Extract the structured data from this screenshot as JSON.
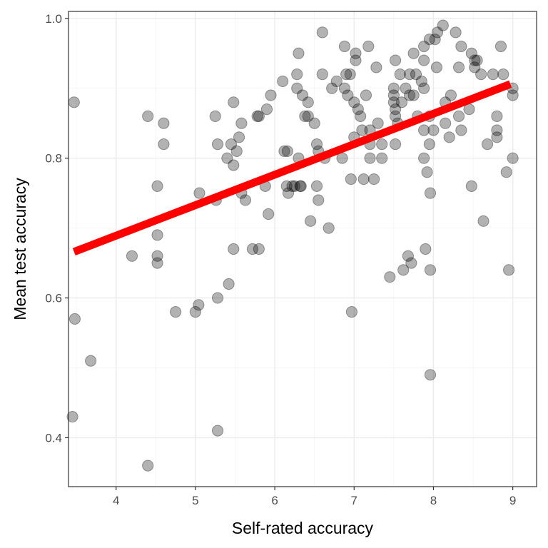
{
  "chart_data": {
    "type": "scatter",
    "xlabel": "Self-rated accuracy",
    "ylabel": "Mean test accuracy",
    "xlim": [
      3.4,
      9.3
    ],
    "ylim": [
      0.33,
      1.01
    ],
    "x_ticks": [
      4,
      5,
      6,
      7,
      8,
      9
    ],
    "x_tick_labels": [
      "4",
      "5",
      "6",
      "7",
      "8",
      "9"
    ],
    "y_ticks": [
      0.4,
      0.6,
      0.8,
      1.0
    ],
    "y_tick_labels": [
      "0.4",
      "0.6",
      "0.8",
      "1.0"
    ],
    "grid": true,
    "point_color": "#000000",
    "point_opacity": 0.3,
    "fit_line": {
      "color": "#ff0000",
      "x": [
        3.47,
        8.97
      ],
      "y": [
        0.666,
        0.906
      ]
    },
    "points": [
      [
        3.47,
        0.88
      ],
      [
        3.48,
        0.57
      ],
      [
        3.45,
        0.43
      ],
      [
        3.68,
        0.51
      ],
      [
        4.2,
        0.66
      ],
      [
        4.4,
        0.86
      ],
      [
        4.4,
        0.36
      ],
      [
        4.52,
        0.76
      ],
      [
        4.52,
        0.69
      ],
      [
        4.52,
        0.66
      ],
      [
        4.52,
        0.65
      ],
      [
        4.6,
        0.85
      ],
      [
        4.6,
        0.82
      ],
      [
        4.75,
        0.58
      ],
      [
        5.0,
        0.58
      ],
      [
        5.04,
        0.59
      ],
      [
        5.05,
        0.75
      ],
      [
        5.25,
        0.86
      ],
      [
        5.26,
        0.74
      ],
      [
        5.28,
        0.82
      ],
      [
        5.28,
        0.6
      ],
      [
        5.28,
        0.41
      ],
      [
        5.4,
        0.8
      ],
      [
        5.42,
        0.62
      ],
      [
        5.45,
        0.82
      ],
      [
        5.48,
        0.88
      ],
      [
        5.48,
        0.79
      ],
      [
        5.48,
        0.67
      ],
      [
        5.52,
        0.81
      ],
      [
        5.55,
        0.83
      ],
      [
        5.58,
        0.85
      ],
      [
        5.58,
        0.75
      ],
      [
        5.63,
        0.74
      ],
      [
        5.72,
        0.67
      ],
      [
        5.78,
        0.86
      ],
      [
        5.8,
        0.86
      ],
      [
        5.8,
        0.67
      ],
      [
        5.88,
        0.76
      ],
      [
        5.9,
        0.87
      ],
      [
        5.92,
        0.72
      ],
      [
        5.95,
        0.89
      ],
      [
        6.1,
        0.91
      ],
      [
        6.12,
        0.81
      ],
      [
        6.15,
        0.76
      ],
      [
        6.16,
        0.81
      ],
      [
        6.17,
        0.75
      ],
      [
        6.22,
        0.76
      ],
      [
        6.25,
        0.76
      ],
      [
        6.28,
        0.92
      ],
      [
        6.28,
        0.9
      ],
      [
        6.3,
        0.95
      ],
      [
        6.3,
        0.8
      ],
      [
        6.32,
        0.76
      ],
      [
        6.33,
        0.76
      ],
      [
        6.35,
        0.89
      ],
      [
        6.38,
        0.86
      ],
      [
        6.42,
        0.88
      ],
      [
        6.42,
        0.86
      ],
      [
        6.45,
        0.71
      ],
      [
        6.5,
        0.85
      ],
      [
        6.53,
        0.82
      ],
      [
        6.53,
        0.76
      ],
      [
        6.55,
        0.81
      ],
      [
        6.55,
        0.74
      ],
      [
        6.6,
        0.98
      ],
      [
        6.6,
        0.92
      ],
      [
        6.63,
        0.8
      ],
      [
        6.68,
        0.7
      ],
      [
        6.72,
        0.9
      ],
      [
        6.78,
        0.91
      ],
      [
        6.85,
        0.8
      ],
      [
        6.88,
        0.96
      ],
      [
        6.88,
        0.9
      ],
      [
        6.9,
        0.92
      ],
      [
        6.92,
        0.89
      ],
      [
        6.95,
        0.92
      ],
      [
        6.96,
        0.77
      ],
      [
        6.97,
        0.58
      ],
      [
        7.0,
        0.88
      ],
      [
        7.0,
        0.83
      ],
      [
        7.02,
        0.95
      ],
      [
        7.02,
        0.94
      ],
      [
        7.05,
        0.87
      ],
      [
        7.08,
        0.86
      ],
      [
        7.1,
        0.84
      ],
      [
        7.12,
        0.77
      ],
      [
        7.15,
        0.89
      ],
      [
        7.18,
        0.96
      ],
      [
        7.2,
        0.84
      ],
      [
        7.2,
        0.82
      ],
      [
        7.2,
        0.8
      ],
      [
        7.25,
        0.77
      ],
      [
        7.28,
        0.93
      ],
      [
        7.3,
        0.85
      ],
      [
        7.35,
        0.82
      ],
      [
        7.35,
        0.8
      ],
      [
        7.45,
        0.63
      ],
      [
        7.5,
        0.9
      ],
      [
        7.5,
        0.89
      ],
      [
        7.5,
        0.88
      ],
      [
        7.52,
        0.94
      ],
      [
        7.52,
        0.87
      ],
      [
        7.52,
        0.86
      ],
      [
        7.52,
        0.82
      ],
      [
        7.55,
        0.85
      ],
      [
        7.58,
        0.92
      ],
      [
        7.6,
        0.88
      ],
      [
        7.62,
        0.64
      ],
      [
        7.65,
        0.9
      ],
      [
        7.68,
        0.66
      ],
      [
        7.7,
        0.92
      ],
      [
        7.7,
        0.89
      ],
      [
        7.72,
        0.65
      ],
      [
        7.75,
        0.95
      ],
      [
        7.75,
        0.89
      ],
      [
        7.78,
        0.92
      ],
      [
        7.8,
        0.86
      ],
      [
        7.85,
        0.91
      ],
      [
        7.88,
        0.96
      ],
      [
        7.88,
        0.94
      ],
      [
        7.88,
        0.9
      ],
      [
        7.88,
        0.84
      ],
      [
        7.88,
        0.8
      ],
      [
        7.9,
        0.67
      ],
      [
        7.92,
        0.78
      ],
      [
        7.95,
        0.97
      ],
      [
        7.95,
        0.86
      ],
      [
        7.95,
        0.82
      ],
      [
        7.96,
        0.75
      ],
      [
        7.96,
        0.64
      ],
      [
        7.96,
        0.49
      ],
      [
        8.0,
        0.84
      ],
      [
        8.02,
        0.97
      ],
      [
        8.04,
        0.93
      ],
      [
        8.05,
        0.98
      ],
      [
        8.12,
        0.99
      ],
      [
        8.15,
        0.88
      ],
      [
        8.15,
        0.85
      ],
      [
        8.2,
        0.83
      ],
      [
        8.22,
        0.89
      ],
      [
        8.28,
        0.98
      ],
      [
        8.32,
        0.93
      ],
      [
        8.32,
        0.86
      ],
      [
        8.35,
        0.96
      ],
      [
        8.35,
        0.84
      ],
      [
        8.45,
        0.87
      ],
      [
        8.48,
        0.95
      ],
      [
        8.48,
        0.76
      ],
      [
        8.52,
        0.94
      ],
      [
        8.52,
        0.93
      ],
      [
        8.55,
        0.94
      ],
      [
        8.6,
        0.92
      ],
      [
        8.63,
        0.71
      ],
      [
        8.68,
        0.82
      ],
      [
        8.75,
        0.92
      ],
      [
        8.8,
        0.86
      ],
      [
        8.8,
        0.84
      ],
      [
        8.8,
        0.83
      ],
      [
        8.85,
        0.96
      ],
      [
        8.88,
        0.92
      ],
      [
        8.92,
        0.78
      ],
      [
        8.95,
        0.64
      ],
      [
        9.0,
        0.9
      ],
      [
        9.0,
        0.89
      ],
      [
        9.0,
        0.8
      ]
    ]
  }
}
